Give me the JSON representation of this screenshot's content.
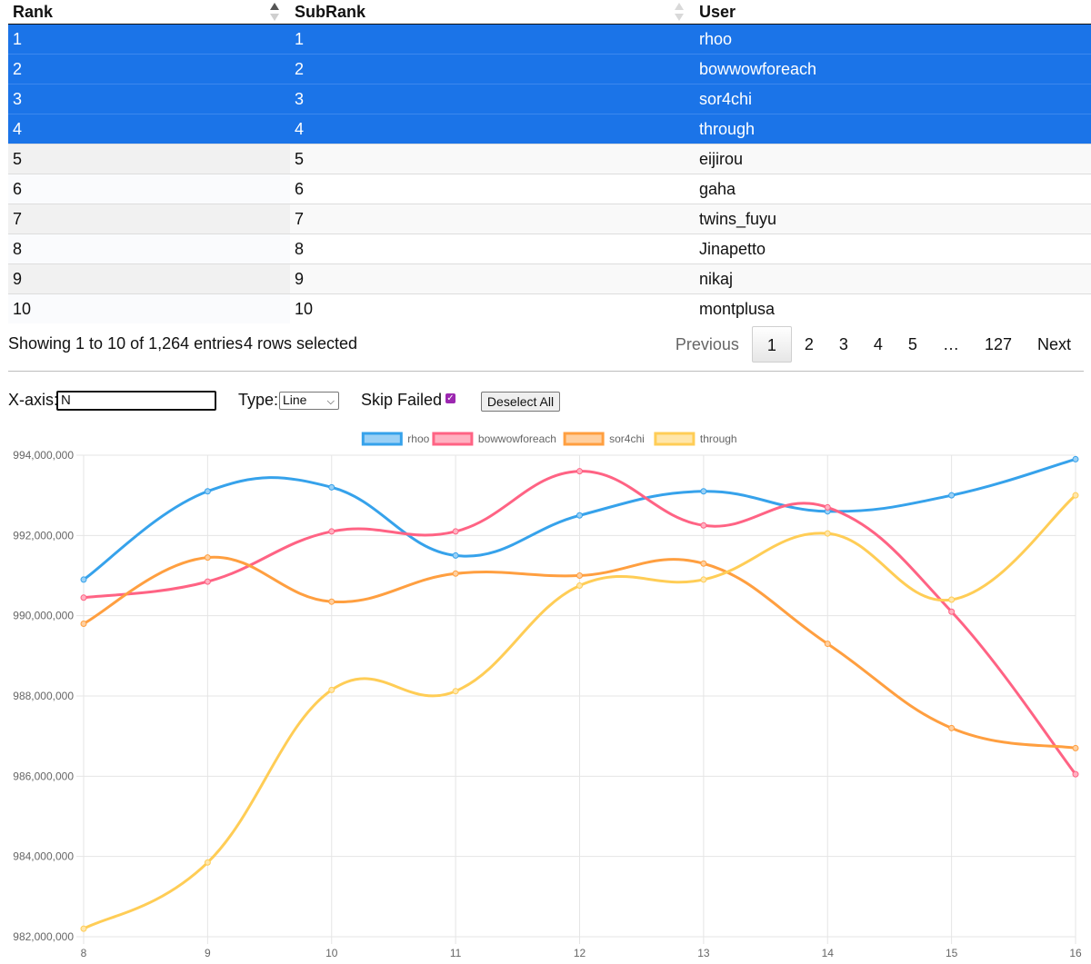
{
  "table": {
    "headers": [
      "Rank",
      "SubRank",
      "User"
    ],
    "rows": [
      {
        "rank": "1",
        "subrank": "1",
        "user": "rhoo",
        "selected": true
      },
      {
        "rank": "2",
        "subrank": "2",
        "user": "bowwowforeach",
        "selected": true
      },
      {
        "rank": "3",
        "subrank": "3",
        "user": "sor4chi",
        "selected": true
      },
      {
        "rank": "4",
        "subrank": "4",
        "user": "through",
        "selected": true
      },
      {
        "rank": "5",
        "subrank": "5",
        "user": "eijirou",
        "selected": false
      },
      {
        "rank": "6",
        "subrank": "6",
        "user": "gaha",
        "selected": false
      },
      {
        "rank": "7",
        "subrank": "7",
        "user": "twins_fuyu",
        "selected": false
      },
      {
        "rank": "8",
        "subrank": "8",
        "user": "Jinapetto",
        "selected": false
      },
      {
        "rank": "9",
        "subrank": "9",
        "user": "nikaj",
        "selected": false
      },
      {
        "rank": "10",
        "subrank": "10",
        "user": "montplusa",
        "selected": false
      }
    ],
    "sort_icons": [
      "sort-asc-icon",
      "sort-both-icon"
    ]
  },
  "info": {
    "entries_text": "Showing 1 to 10 of 1,264 entries",
    "selected_text": "4 rows selected"
  },
  "pagination": {
    "previous": "Previous",
    "pages": [
      "1",
      "2",
      "3",
      "4",
      "5",
      "…",
      "127"
    ],
    "current": "1",
    "next": "Next"
  },
  "controls": {
    "xaxis_label": "X-axis:",
    "xaxis_value": "N",
    "type_label": "Type:",
    "type_value": "Line",
    "skip_failed_label": "Skip Failed",
    "skip_failed_checked": true,
    "deselect_label": "Deselect All"
  },
  "chart_data": {
    "type": "line",
    "x": [
      8,
      9,
      10,
      11,
      12,
      13,
      14,
      15,
      16
    ],
    "ylim": [
      982000000,
      994000000
    ],
    "yticks": [
      982000000,
      984000000,
      986000000,
      988000000,
      990000000,
      992000000,
      994000000
    ],
    "ytick_labels": [
      "982,000,000",
      "984,000,000",
      "986,000,000",
      "988,000,000",
      "990,000,000",
      "992,000,000",
      "994,000,000"
    ],
    "grid": true,
    "legend": "top-center",
    "series": [
      {
        "name": "rhoo",
        "color": "#36a2eb",
        "fill": "#9ad0f5",
        "values": [
          990900000,
          993100000,
          993200000,
          991500000,
          992500000,
          993100000,
          992600000,
          993000000,
          993900000
        ]
      },
      {
        "name": "bowwowforeach",
        "color": "#ff6384",
        "fill": "#ffb1c1",
        "values": [
          990450000,
          990850000,
          992100000,
          992100000,
          993600000,
          992250000,
          992700000,
          990100000,
          986050000
        ]
      },
      {
        "name": "sor4chi",
        "color": "#ff9f40",
        "fill": "#ffcf9f",
        "values": [
          989800000,
          991450000,
          990350000,
          991050000,
          991000000,
          991300000,
          989300000,
          987200000,
          986700000
        ]
      },
      {
        "name": "through",
        "color": "#ffcd56",
        "fill": "#ffe6aa",
        "values": [
          982200000,
          983850000,
          988150000,
          988120000,
          990750000,
          990900000,
          992050000,
          990400000,
          993000000
        ]
      }
    ]
  }
}
